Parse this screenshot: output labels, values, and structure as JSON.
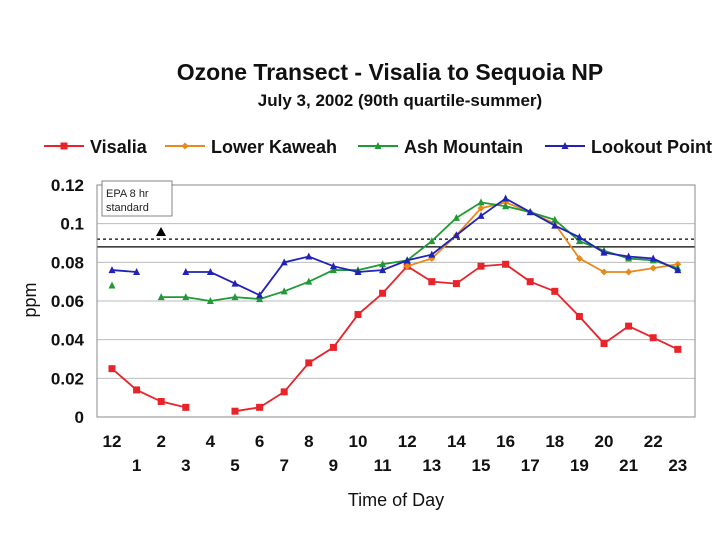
{
  "chart_data": {
    "type": "line",
    "title": "Ozone Transect - Visalia to Sequoia NP",
    "subtitle": "July 3, 2002 (90th quartile-summer)",
    "xlabel": "Time of Day",
    "ylabel": "ppm",
    "x": [
      0,
      1,
      2,
      3,
      4,
      5,
      6,
      7,
      8,
      9,
      10,
      11,
      12,
      13,
      14,
      15,
      16,
      17,
      18,
      19,
      20,
      21,
      22,
      23
    ],
    "x_tick_labels": [
      "12",
      "1",
      "2",
      "3",
      "4",
      "5",
      "6",
      "7",
      "8",
      "9",
      "10",
      "11",
      "12",
      "13",
      "14",
      "15",
      "16",
      "17",
      "18",
      "19",
      "20",
      "21",
      "22",
      "23"
    ],
    "ylim": [
      0,
      0.12
    ],
    "y_ticks": [
      0,
      0.02,
      0.04,
      0.06,
      0.08,
      0.1,
      0.12
    ],
    "y_tick_labels": [
      "0",
      "0.02",
      "0.04",
      "0.06",
      "0.08",
      "0.1",
      "0.12"
    ],
    "series": [
      {
        "name": "Visalia",
        "color": "#e8232a",
        "marker": "square",
        "values": [
          0.025,
          0.014,
          0.008,
          0.005,
          null,
          0.003,
          0.005,
          0.013,
          0.028,
          0.036,
          0.053,
          0.064,
          0.078,
          0.07,
          0.069,
          0.078,
          0.079,
          0.07,
          0.065,
          0.052,
          0.038,
          0.047,
          0.041,
          0.035
        ]
      },
      {
        "name": "Lower Kaweah",
        "color": "#e8891e",
        "marker": "diamond",
        "values": [
          null,
          null,
          null,
          null,
          null,
          null,
          null,
          null,
          null,
          null,
          null,
          null,
          0.078,
          0.082,
          0.094,
          0.108,
          0.111,
          0.106,
          0.1,
          0.082,
          0.075,
          0.075,
          0.077,
          0.079
        ]
      },
      {
        "name": "Ash Mountain",
        "color": "#1f9a34",
        "marker": "triangle",
        "values": [
          0.068,
          null,
          0.062,
          0.062,
          0.06,
          0.062,
          0.061,
          0.065,
          0.07,
          0.076,
          0.076,
          0.079,
          0.081,
          0.091,
          0.103,
          0.111,
          0.109,
          0.106,
          0.102,
          0.091,
          0.086,
          0.082,
          0.081,
          0.077
        ]
      },
      {
        "name": "Lookout Point",
        "color": "#2222b8",
        "marker": "triangle",
        "values": [
          0.076,
          0.075,
          null,
          0.075,
          0.075,
          0.069,
          0.063,
          0.08,
          0.083,
          0.078,
          0.075,
          0.076,
          0.081,
          0.084,
          0.094,
          0.104,
          0.113,
          0.106,
          0.099,
          0.093,
          0.085,
          0.083,
          0.082,
          0.076
        ]
      }
    ],
    "reference_lines": [
      {
        "label": "EPA 8 hr standard",
        "value": 0.092,
        "style": "dashed"
      },
      {
        "value": 0.088,
        "style": "solid"
      }
    ],
    "annotation": {
      "text_line1": "EPA 8 hr",
      "text_line2": "standard"
    },
    "grid": true,
    "legend_position": "top"
  }
}
